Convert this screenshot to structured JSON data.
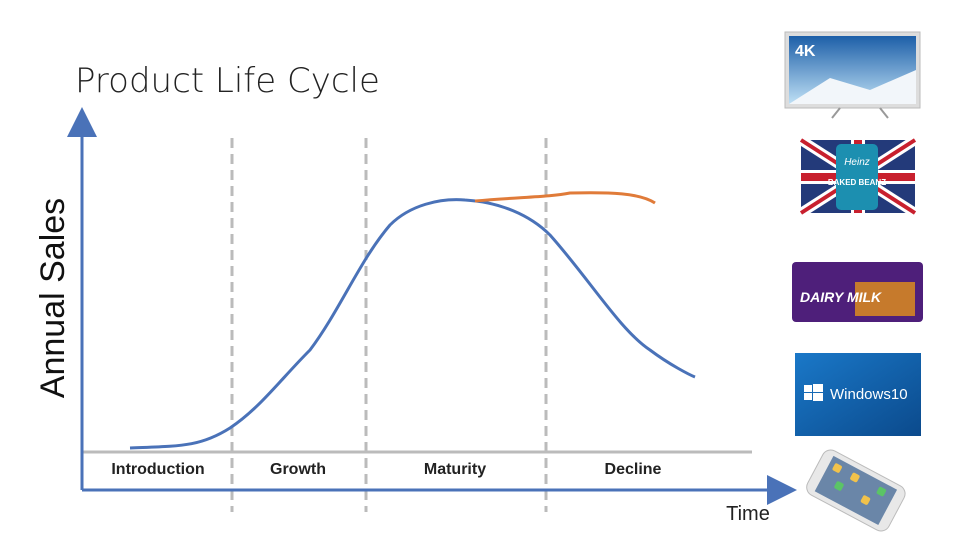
{
  "title": "Product Life Cycle",
  "y_axis_label": "Annual Sales",
  "x_axis_label": "Time",
  "stages": [
    "Introduction",
    "Growth",
    "Maturity",
    "Decline"
  ],
  "products": [
    "4K",
    "Heinz",
    "BAKED BEANZ",
    "DAIRY MILK",
    "Windows10"
  ]
}
